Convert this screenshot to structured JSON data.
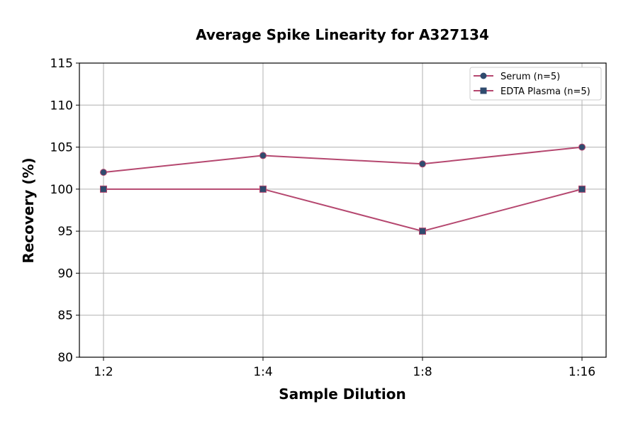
{
  "chart_data": {
    "type": "line",
    "title": "Average Spike Linearity for A327134",
    "xlabel": "Sample Dilution",
    "ylabel": "Recovery (%)",
    "categories": [
      "1:2",
      "1:4",
      "1:8",
      "1:16"
    ],
    "ylim": [
      80,
      115
    ],
    "yticks": [
      80,
      85,
      90,
      95,
      100,
      105,
      110,
      115
    ],
    "grid": true,
    "legend_position": "top-right",
    "line_color": "#b5476f",
    "marker_color": "#2f4b6e",
    "series": [
      {
        "name": "Serum (n=5)",
        "marker": "circle",
        "values": [
          102,
          104,
          103,
          105
        ]
      },
      {
        "name": "EDTA Plasma (n=5)",
        "marker": "square",
        "values": [
          100,
          100,
          95,
          100
        ]
      }
    ]
  }
}
